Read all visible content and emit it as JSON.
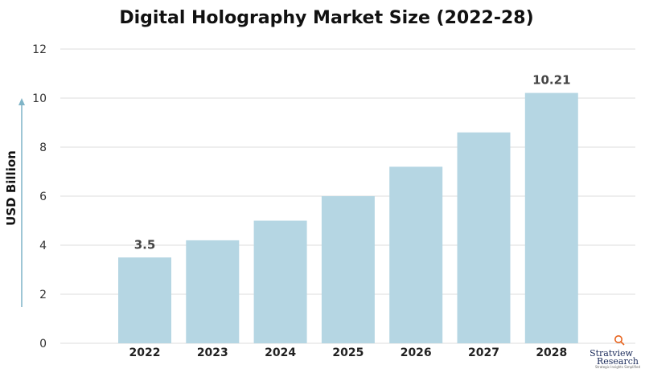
{
  "chart_data": {
    "type": "bar",
    "title": "Digital Holography Market Size (2022-28)",
    "ylabel": "USD Billion",
    "xlabel": "",
    "categories": [
      "2022",
      "2023",
      "2024",
      "2025",
      "2026",
      "2027",
      "2028"
    ],
    "values": [
      3.5,
      4.2,
      5.0,
      6.0,
      7.2,
      8.6,
      10.21
    ],
    "data_labels": [
      {
        "category": "2022",
        "text": "3.5"
      },
      {
        "category": "2028",
        "text": "10.21"
      }
    ],
    "ylim": [
      0,
      12
    ],
    "yticks": [
      "0",
      "2",
      "4",
      "6",
      "8",
      "10",
      "12"
    ],
    "grid": true,
    "legend": "none",
    "bar_color": "#b5d6e3",
    "arrow_color": "#7fb4c7",
    "grid_color": "#dddddd"
  },
  "logo": {
    "name": "Stratview",
    "sub": "Research",
    "tagline": "Strategic Insights Simplified",
    "accent_color": "#e8641e"
  }
}
